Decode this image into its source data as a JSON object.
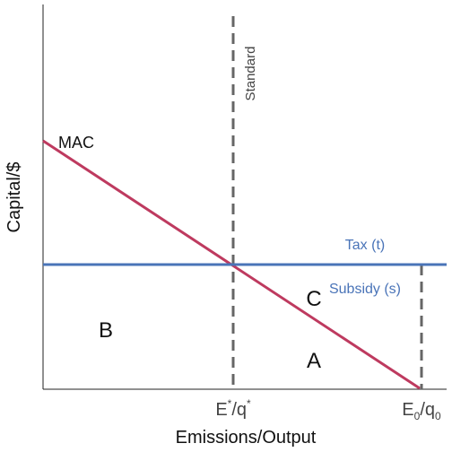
{
  "diagram": {
    "curves": {
      "mac": "MAC",
      "tax": "Tax (t)",
      "subsidy": "Subsidy (s)",
      "standard": "Standard"
    },
    "areas": {
      "a": "A",
      "b": "B",
      "c": "C"
    },
    "axes": {
      "x_label": "Emissions/Output",
      "y_label": "Capital/$",
      "x_ticks": [
        [
          "E",
          "*",
          "/q",
          "*"
        ],
        [
          "E",
          "0",
          "/q",
          "0"
        ]
      ]
    }
  }
}
